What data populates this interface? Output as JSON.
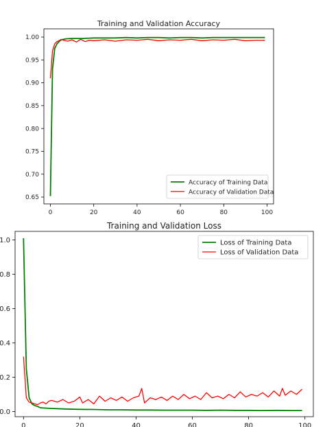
{
  "chart_data": [
    {
      "type": "line",
      "title": "Training and Validation Accuracy",
      "xlabel": "",
      "ylabel": "",
      "xlim": [
        -3,
        103
      ],
      "ylim": [
        0.635,
        1.018
      ],
      "xticks": [
        0,
        20,
        40,
        60,
        80,
        100
      ],
      "xtick_labels": [
        "0",
        "20",
        "40",
        "60",
        "80",
        "100"
      ],
      "yticks": [
        0.65,
        0.7,
        0.75,
        0.8,
        0.85,
        0.9,
        0.95,
        1.0
      ],
      "ytick_labels": [
        "0.65",
        "0.70",
        "0.75",
        "0.80",
        "0.85",
        "0.90",
        "0.95",
        "1.00"
      ],
      "grid": false,
      "legend_placement": "lower-right",
      "series": [
        {
          "name": "Accuracy of Training Data",
          "color": "#008000",
          "x": [
            0,
            1,
            2,
            3,
            4,
            5,
            7,
            10,
            15,
            20,
            25,
            30,
            35,
            40,
            45,
            50,
            55,
            60,
            65,
            70,
            75,
            80,
            85,
            90,
            95,
            99
          ],
          "values": [
            0.652,
            0.93,
            0.975,
            0.985,
            0.99,
            0.994,
            0.996,
            0.997,
            0.997,
            0.998,
            0.998,
            0.998,
            0.999,
            0.998,
            0.999,
            0.999,
            0.998,
            0.999,
            0.999,
            0.998,
            0.999,
            0.999,
            0.999,
            0.999,
            0.999,
            0.999
          ]
        },
        {
          "name": "Accuracy of Validation Data",
          "color": "#ff0000",
          "x": [
            0,
            1,
            2,
            3,
            4,
            5,
            6,
            8,
            10,
            12,
            14,
            16,
            18,
            20,
            25,
            30,
            35,
            40,
            45,
            50,
            55,
            60,
            65,
            70,
            75,
            80,
            85,
            90,
            95,
            99
          ],
          "values": [
            0.91,
            0.97,
            0.985,
            0.99,
            0.992,
            0.995,
            0.993,
            0.991,
            0.994,
            0.989,
            0.995,
            0.99,
            0.993,
            0.992,
            0.994,
            0.991,
            0.994,
            0.993,
            0.995,
            0.992,
            0.994,
            0.993,
            0.995,
            0.992,
            0.994,
            0.993,
            0.995,
            0.992,
            0.993,
            0.993
          ]
        }
      ]
    },
    {
      "type": "line",
      "title": "Training and Validation Loss",
      "xlabel": "",
      "ylabel": "",
      "xlim": [
        -3,
        103
      ],
      "ylim": [
        -0.03,
        1.05
      ],
      "xticks": [
        0,
        20,
        40,
        60,
        80,
        100
      ],
      "xtick_labels": [
        "0",
        "20",
        "40",
        "60",
        "80",
        "100"
      ],
      "yticks": [
        0.0,
        0.2,
        0.4,
        0.6,
        0.8,
        1.0
      ],
      "ytick_labels": [
        "0.0",
        "0.2",
        "0.4",
        "0.6",
        "0.8",
        "1.0"
      ],
      "grid": false,
      "legend_placement": "upper-right",
      "series": [
        {
          "name": "Loss of Training Data",
          "color": "#008000",
          "x": [
            0,
            1,
            2,
            3,
            4,
            5,
            6,
            8,
            10,
            15,
            20,
            25,
            30,
            35,
            40,
            45,
            50,
            55,
            60,
            65,
            70,
            75,
            80,
            85,
            90,
            95,
            99
          ],
          "values": [
            1.01,
            0.25,
            0.08,
            0.045,
            0.035,
            0.03,
            0.022,
            0.02,
            0.018,
            0.015,
            0.013,
            0.012,
            0.01,
            0.01,
            0.009,
            0.009,
            0.008,
            0.008,
            0.008,
            0.007,
            0.008,
            0.007,
            0.007,
            0.006,
            0.007,
            0.006,
            0.006
          ]
        },
        {
          "name": "Loss of Validation Data",
          "color": "#ff0000",
          "x": [
            0,
            1,
            2,
            3,
            4,
            5,
            6,
            7,
            8,
            9,
            10,
            12,
            14,
            16,
            18,
            20,
            21,
            23,
            25,
            27,
            29,
            31,
            33,
            35,
            37,
            39,
            41,
            42,
            43,
            45,
            47,
            49,
            51,
            53,
            55,
            57,
            59,
            61,
            63,
            65,
            67,
            69,
            71,
            73,
            75,
            77,
            79,
            81,
            83,
            85,
            87,
            89,
            91,
            92,
            93,
            95,
            97,
            99
          ],
          "values": [
            0.32,
            0.08,
            0.055,
            0.05,
            0.045,
            0.04,
            0.05,
            0.055,
            0.045,
            0.06,
            0.065,
            0.055,
            0.07,
            0.05,
            0.06,
            0.085,
            0.05,
            0.07,
            0.045,
            0.09,
            0.06,
            0.08,
            0.065,
            0.085,
            0.06,
            0.08,
            0.09,
            0.135,
            0.05,
            0.08,
            0.07,
            0.085,
            0.065,
            0.09,
            0.07,
            0.1,
            0.075,
            0.09,
            0.07,
            0.11,
            0.08,
            0.09,
            0.075,
            0.1,
            0.08,
            0.115,
            0.085,
            0.1,
            0.09,
            0.11,
            0.085,
            0.12,
            0.09,
            0.135,
            0.095,
            0.12,
            0.1,
            0.13
          ]
        }
      ]
    }
  ]
}
